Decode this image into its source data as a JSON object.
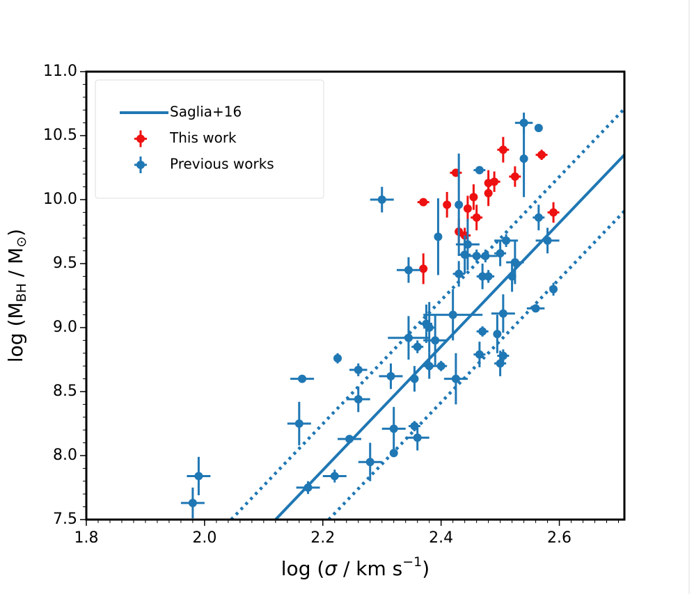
{
  "chart_data": {
    "type": "scatter",
    "xlabel": [
      "log (",
      "σ",
      " / km s",
      "−1",
      ")"
    ],
    "ylabel": [
      "log (M",
      "BH",
      " / M",
      "⊙",
      ")"
    ],
    "xlim": [
      1.8,
      2.71
    ],
    "ylim": [
      7.5,
      11.0
    ],
    "xticks": [
      1.8,
      {
        "value": 2,
        "label": "2.0"
      },
      2.2,
      2.4,
      2.6
    ],
    "yticks": [
      7.5,
      {
        "value": 8,
        "label": "8.0"
      },
      8.5,
      {
        "value": 9,
        "label": "9.0"
      },
      9.5,
      {
        "value": 10,
        "label": "10.0"
      },
      10.5,
      {
        "value": 11,
        "label": "11.0"
      }
    ],
    "legend": "upper left",
    "series": [
      {
        "name": "Saglia+16",
        "kind": "line",
        "style": "solid",
        "color": "#1f77b4",
        "x": [
          2.12,
          2.71
        ],
        "values": [
          7.5,
          10.35
        ]
      },
      {
        "kind": "line",
        "style": "dotted",
        "color": "#1f77b4",
        "x": [
          2.045,
          2.71
        ],
        "values": [
          7.5,
          10.71
        ]
      },
      {
        "kind": "line",
        "style": "dotted",
        "color": "#1f77b4",
        "x": [
          2.21,
          2.71
        ],
        "values": [
          7.5,
          9.91
        ]
      },
      {
        "name": "This work",
        "kind": "errorbar",
        "color": "#ee1111",
        "x": [
          2.37,
          2.37,
          2.41,
          2.425,
          2.43,
          2.44,
          2.445,
          2.455,
          2.46,
          2.48,
          2.48,
          2.49,
          2.505,
          2.525,
          2.57,
          2.59
        ],
        "values": [
          9.98,
          9.46,
          9.96,
          10.21,
          9.75,
          9.72,
          9.93,
          10.02,
          9.86,
          10.05,
          10.13,
          10.14,
          10.39,
          10.18,
          10.35,
          9.9
        ],
        "xerr": [
          0.01,
          0.005,
          0.005,
          0.01,
          0.005,
          0.01,
          0.005,
          0.005,
          0.01,
          0.005,
          0.005,
          0.01,
          0.01,
          0.01,
          0.01,
          0.01
        ],
        "yerr": [
          0.02,
          0.12,
          0.1,
          0.02,
          0.1,
          0.06,
          0.1,
          0.1,
          0.1,
          0.1,
          0.1,
          0.08,
          0.1,
          0.08,
          0.04,
          0.08
        ]
      },
      {
        "name": "Previous works",
        "kind": "errorbar",
        "color": "#1f77b4",
        "x": [
          1.98,
          1.99,
          2.175,
          2.165,
          2.16,
          2.225,
          2.22,
          2.245,
          2.26,
          2.26,
          2.28,
          2.3,
          2.315,
          2.32,
          2.32,
          2.355,
          2.36,
          2.355,
          2.345,
          2.345,
          2.36,
          2.375,
          2.38,
          2.38,
          2.39,
          2.395,
          2.4,
          2.425,
          2.43,
          2.43,
          2.44,
          2.445,
          2.42,
          2.46,
          2.465,
          2.465,
          2.47,
          2.47,
          2.475,
          2.48,
          2.495,
          2.5,
          2.505,
          2.505,
          2.5,
          2.51,
          2.52,
          2.525,
          2.54,
          2.54,
          2.565,
          2.56,
          2.565,
          2.58,
          2.59
        ],
        "values": [
          7.63,
          7.84,
          7.75,
          8.6,
          8.25,
          8.76,
          7.84,
          8.13,
          8.67,
          8.44,
          7.95,
          10.0,
          8.62,
          8.21,
          8.02,
          8.23,
          8.14,
          8.6,
          8.92,
          9.45,
          8.85,
          9.03,
          8.7,
          9.0,
          8.9,
          9.71,
          8.7,
          8.6,
          9.96,
          9.42,
          9.57,
          9.65,
          9.1,
          9.56,
          8.79,
          10.23,
          8.97,
          9.4,
          9.56,
          9.4,
          8.95,
          9.58,
          9.11,
          8.78,
          8.72,
          9.68,
          9.4,
          9.51,
          10.32,
          10.6,
          10.56,
          9.15,
          9.86,
          9.68,
          9.3
        ],
        "xerr": [
          0.02,
          0.02,
          0.02,
          0.02,
          0.02,
          0.005,
          0.02,
          0.02,
          0.015,
          0.02,
          0.02,
          0.02,
          0.02,
          0.02,
          0.005,
          0.01,
          0.02,
          0.005,
          0.035,
          0.02,
          0.01,
          0.01,
          0.01,
          0.01,
          0.02,
          0.005,
          0.01,
          0.02,
          0.005,
          0.01,
          0.01,
          0.02,
          0.05,
          0.02,
          0.01,
          0.01,
          0.01,
          0.01,
          0.02,
          0.01,
          0.005,
          0.01,
          0.02,
          0.01,
          0.01,
          0.02,
          0.005,
          0.015,
          0.005,
          0.015,
          0.005,
          0.015,
          0.01,
          0.02,
          0.005
        ],
        "yerr": [
          0.12,
          0.15,
          0.05,
          0,
          0.17,
          0.04,
          0.05,
          0.01,
          0.05,
          0.1,
          0.15,
          0.1,
          0.1,
          0.17,
          0.02,
          0.04,
          0.1,
          0.1,
          0.17,
          0.1,
          0.05,
          0.15,
          0.1,
          0.2,
          0.2,
          0.3,
          0.04,
          0.2,
          0.4,
          0.1,
          0.15,
          0.2,
          0.2,
          0.05,
          0.1,
          0,
          0.04,
          0.1,
          0.05,
          0.05,
          0.15,
          0.1,
          0.15,
          0.05,
          0.1,
          0.05,
          0.12,
          0.17,
          0.3,
          0.08,
          0.01,
          0.01,
          0.1,
          0.1,
          0.05
        ]
      }
    ]
  }
}
